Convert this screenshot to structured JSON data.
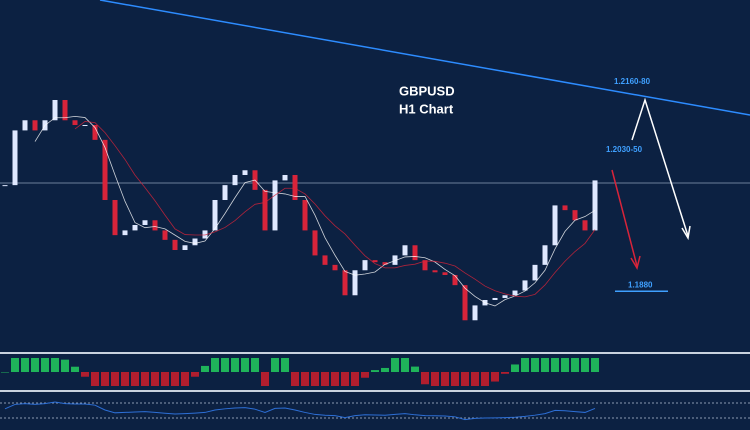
{
  "chart_data": {
    "type": "candlestick",
    "title": "GBPUSD",
    "subtitle": "H1 Chart",
    "close": [
      1.2037,
      1.2118,
      1.2133,
      1.2118,
      1.2133,
      1.2163,
      1.2133,
      1.2126,
      1.2126,
      1.2104,
      1.2015,
      1.1963,
      1.197,
      1.1978,
      1.1985,
      1.197,
      1.1956,
      1.1941,
      1.1948,
      1.1958,
      1.197,
      1.2015,
      1.2037,
      1.2052,
      1.2059,
      1.203,
      1.197,
      1.2044,
      1.2052,
      1.2015,
      1.197,
      1.1933,
      1.1919,
      1.1911,
      1.1874,
      1.1911,
      1.1926,
      1.1923,
      1.1919,
      1.1933,
      1.1948,
      1.1926,
      1.1911,
      1.1908,
      1.1904,
      1.1889,
      1.1837,
      1.1859,
      1.1867,
      1.187,
      1.1874,
      1.1881,
      1.1896,
      1.1919,
      1.1948,
      1.2007,
      1.2,
      1.1985,
      1.197,
      1.2044
    ],
    "up_color": "#dfe8ff",
    "down_color": "#d8243a",
    "ylim": [
      1.1793,
      1.2311
    ],
    "annotations": [
      "1.2160-80",
      "1.2030-50"
    ],
    "levels": [
      {
        "value": 1.188,
        "label": "1.1880"
      }
    ]
  }
}
